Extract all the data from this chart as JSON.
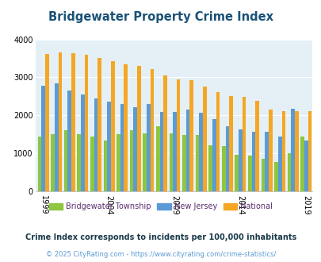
{
  "title": "Bridgewater Property Crime Index",
  "years": [
    1999,
    2000,
    2001,
    2002,
    2003,
    2004,
    2005,
    2006,
    2007,
    2008,
    2009,
    2010,
    2011,
    2012,
    2013,
    2014,
    2015,
    2016,
    2017,
    2018,
    2019
  ],
  "bridgewater": [
    1450,
    1510,
    1600,
    1510,
    1450,
    1340,
    1510,
    1600,
    1530,
    1720,
    1530,
    1490,
    1490,
    1200,
    1190,
    960,
    930,
    860,
    770,
    1010,
    1430
  ],
  "new_jersey": [
    2780,
    2840,
    2650,
    2550,
    2450,
    2350,
    2300,
    2210,
    2300,
    2090,
    2090,
    2150,
    2060,
    1900,
    1720,
    1630,
    1560,
    1560,
    1430,
    2180,
    1340
  ],
  "national": [
    3620,
    3660,
    3630,
    3600,
    3510,
    3430,
    3340,
    3290,
    3220,
    3050,
    2950,
    2920,
    2760,
    2620,
    2510,
    2490,
    2380,
    2160,
    2100,
    2100,
    2100
  ],
  "color_bridgewater": "#8dc63f",
  "color_nj": "#5b9bd5",
  "color_national": "#f5a623",
  "bg_color": "#e4f0f6",
  "ylim": [
    0,
    4000
  ],
  "yticks": [
    0,
    1000,
    2000,
    3000,
    4000
  ],
  "xlabel_years": [
    1999,
    2004,
    2009,
    2014,
    2019
  ],
  "legend_labels": [
    "Bridgewater Township",
    "New Jersey",
    "National"
  ],
  "subtitle": "Crime Index corresponds to incidents per 100,000 inhabitants",
  "footer": "© 2025 CityRating.com - https://www.cityrating.com/crime-statistics/",
  "title_color": "#1a5276",
  "subtitle_color": "#1a3a4a",
  "footer_color": "#5b9bd5",
  "legend_label_color": "#5b2c6f"
}
